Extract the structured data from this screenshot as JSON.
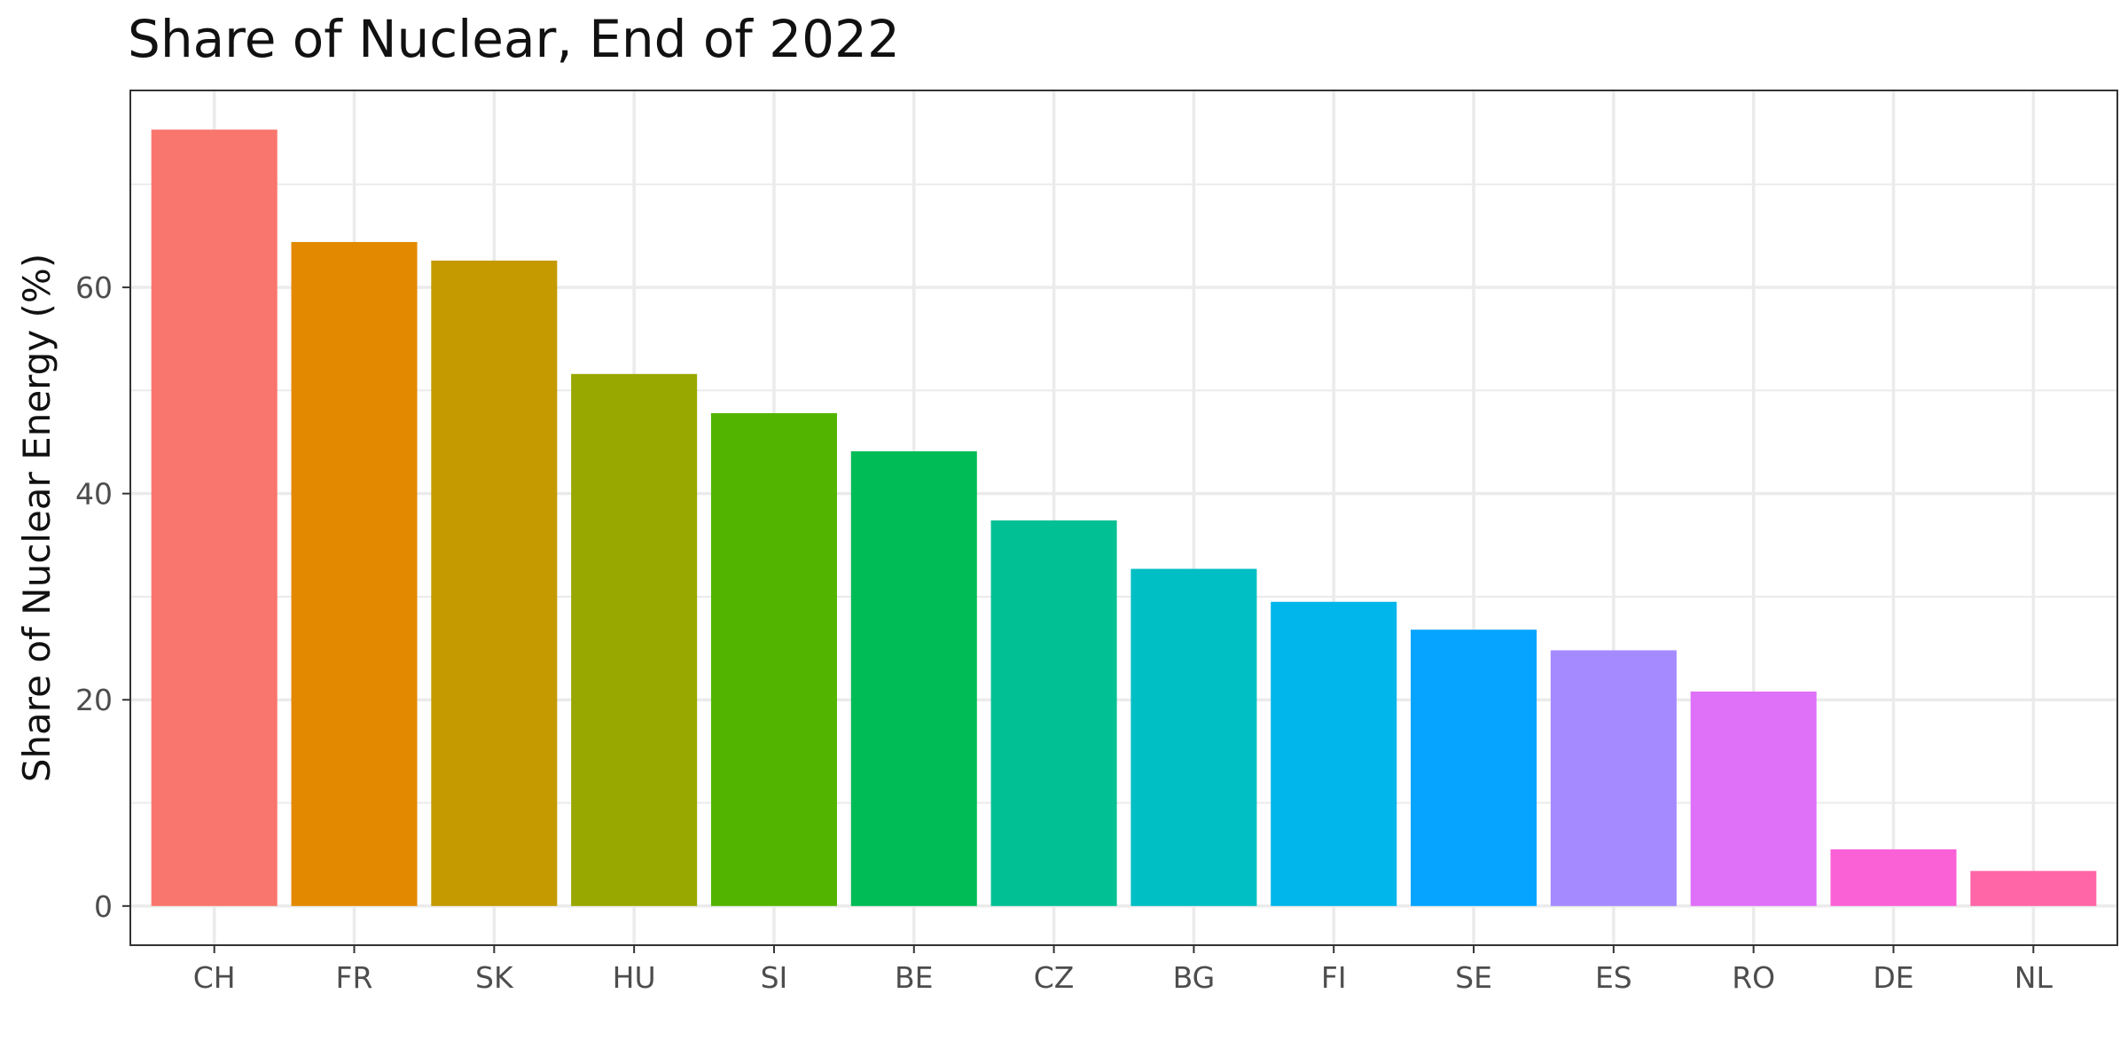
{
  "chart_data": {
    "type": "bar",
    "title": "Share of Nuclear, End of 2022",
    "xlabel": "",
    "ylabel": "Share of Nuclear Energy (%)",
    "categories": [
      "CH",
      "FR",
      "SK",
      "HU",
      "SI",
      "BE",
      "CZ",
      "BG",
      "FI",
      "SE",
      "ES",
      "RO",
      "DE",
      "NL"
    ],
    "values": [
      75.3,
      64.4,
      62.6,
      51.6,
      47.8,
      44.1,
      37.4,
      32.7,
      29.5,
      26.8,
      24.8,
      20.8,
      5.5,
      3.4
    ],
    "colors": [
      "#F8766D",
      "#E38900",
      "#C49A00",
      "#99A800",
      "#53B400",
      "#00BC56",
      "#00C094",
      "#00BFC4",
      "#00B6EB",
      "#06A4FF",
      "#A58AFF",
      "#DF70F8",
      "#FB61D7",
      "#FF66A8"
    ],
    "ylim": [
      -3.8,
      79.1
    ],
    "yticks": [
      0,
      20,
      40,
      60
    ],
    "grid": true,
    "legend": "none"
  }
}
